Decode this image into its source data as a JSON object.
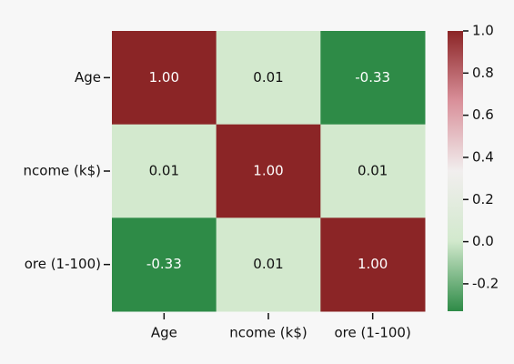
{
  "chart_data": {
    "type": "heatmap",
    "categories": [
      "Age",
      "ncome (k$)",
      "ore (1-100)"
    ],
    "values": [
      [
        1.0,
        0.01,
        -0.33
      ],
      [
        0.01,
        1.0,
        0.01
      ],
      [
        -0.33,
        0.01,
        1.0
      ]
    ],
    "value_labels": [
      [
        "1.00",
        "0.01",
        "-0.33"
      ],
      [
        "0.01",
        "1.00",
        "0.01"
      ],
      [
        "-0.33",
        "0.01",
        "1.00"
      ]
    ],
    "colors": [
      "#2e8b47",
      "#d2e9cd",
      "#f1eeee",
      "#d9909a",
      "#8b2526"
    ],
    "clim": [
      -0.33,
      1.0
    ],
    "cticks": [
      {
        "value": 1.0,
        "label": "1.0"
      },
      0.8,
      0.6,
      0.4,
      0.2,
      {
        "value": 0,
        "label": "0.0"
      },
      -0.2
    ]
  }
}
